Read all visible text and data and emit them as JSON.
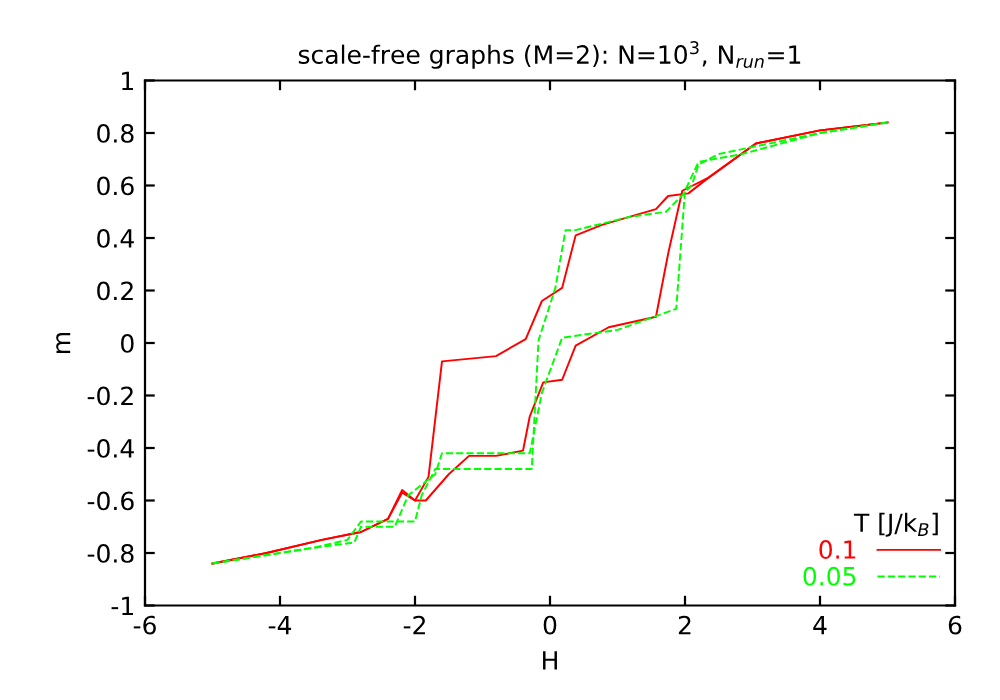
{
  "chart_data": {
    "type": "line",
    "title": "scale-free graphs (M=2): N=10$^{3}$, N$_{run}$=1",
    "xlabel": "H",
    "ylabel": "m",
    "legend_title": "T [J/k$_{B}$]",
    "legend": "bottom right",
    "grid": false,
    "xlim": [
      -6,
      6
    ],
    "xticks": [
      -6,
      -4,
      -2,
      0,
      2,
      4,
      6
    ],
    "ylim": [
      -1,
      1
    ],
    "yticks": [
      -1,
      -0.8,
      -0.6,
      -0.4,
      -0.2,
      0,
      0.2,
      0.4,
      0.6,
      0.8,
      1
    ],
    "series": [
      {
        "name": "0.1",
        "color": "#ff0000",
        "line_style": "solid",
        "x": [
          -5.0,
          -4.2,
          -3.38,
          -2.8,
          -2.4,
          -2.19,
          -2.0,
          -1.84,
          -1.5,
          -1.2,
          -0.8,
          -0.4,
          -0.3,
          -0.1,
          0.18,
          0.38,
          0.87,
          1.57,
          1.75,
          1.96,
          2.35,
          3.05,
          4.0,
          5.0
        ],
        "values": [
          -0.84,
          -0.8,
          -0.75,
          -0.72,
          -0.67,
          -0.56,
          -0.6,
          -0.6,
          -0.5,
          -0.43,
          -0.43,
          -0.41,
          -0.28,
          -0.15,
          -0.14,
          -0.01,
          0.06,
          0.1,
          0.34,
          0.58,
          0.63,
          0.76,
          0.81,
          0.84
        ]
      },
      {
        "color": "#ff0000",
        "line_style": "solid",
        "x": [
          -5.0,
          -4.2,
          -3.38,
          -2.8,
          -2.4,
          -2.19,
          -2.0,
          -1.8,
          -1.7,
          -1.6,
          -0.8,
          -0.36,
          -0.12,
          0.18,
          0.38,
          0.77,
          1.57,
          1.75,
          2.05,
          2.35,
          3.05,
          4.0,
          5.0
        ],
        "values": [
          -0.84,
          -0.8,
          -0.75,
          -0.72,
          -0.67,
          -0.57,
          -0.6,
          -0.51,
          -0.29,
          -0.07,
          -0.05,
          0.015,
          0.16,
          0.21,
          0.41,
          0.45,
          0.51,
          0.56,
          0.57,
          0.63,
          0.76,
          0.81,
          0.84
        ]
      },
      {
        "name": "0.05",
        "color": "#00ff00",
        "line_style": "dashed",
        "x": [
          -5.0,
          -3.5,
          -2.9,
          -2.8,
          -2.3,
          -2.1,
          -1.7,
          -1.6,
          -0.3,
          -0.12,
          0.18,
          1.0,
          1.87,
          2.0,
          2.2,
          2.85,
          4.0,
          5.0
        ],
        "values": [
          -0.84,
          -0.78,
          -0.76,
          -0.7,
          -0.7,
          -0.58,
          -0.5,
          -0.42,
          -0.42,
          -0.19,
          0.02,
          0.05,
          0.13,
          0.58,
          0.69,
          0.72,
          0.8,
          0.84
        ]
      },
      {
        "color": "#00ff00",
        "line_style": "dashed",
        "x": [
          -5.0,
          -3.5,
          -3.0,
          -2.8,
          -2.0,
          -1.9,
          -1.7,
          -0.27,
          -0.17,
          0.08,
          0.23,
          0.38,
          1.17,
          1.72,
          2.1,
          2.2,
          2.5,
          4.0,
          5.0
        ],
        "values": [
          -0.84,
          -0.78,
          -0.75,
          -0.68,
          -0.68,
          -0.58,
          -0.48,
          -0.48,
          0.01,
          0.21,
          0.43,
          0.43,
          0.48,
          0.5,
          0.6,
          0.68,
          0.72,
          0.8,
          0.84
        ]
      }
    ]
  }
}
